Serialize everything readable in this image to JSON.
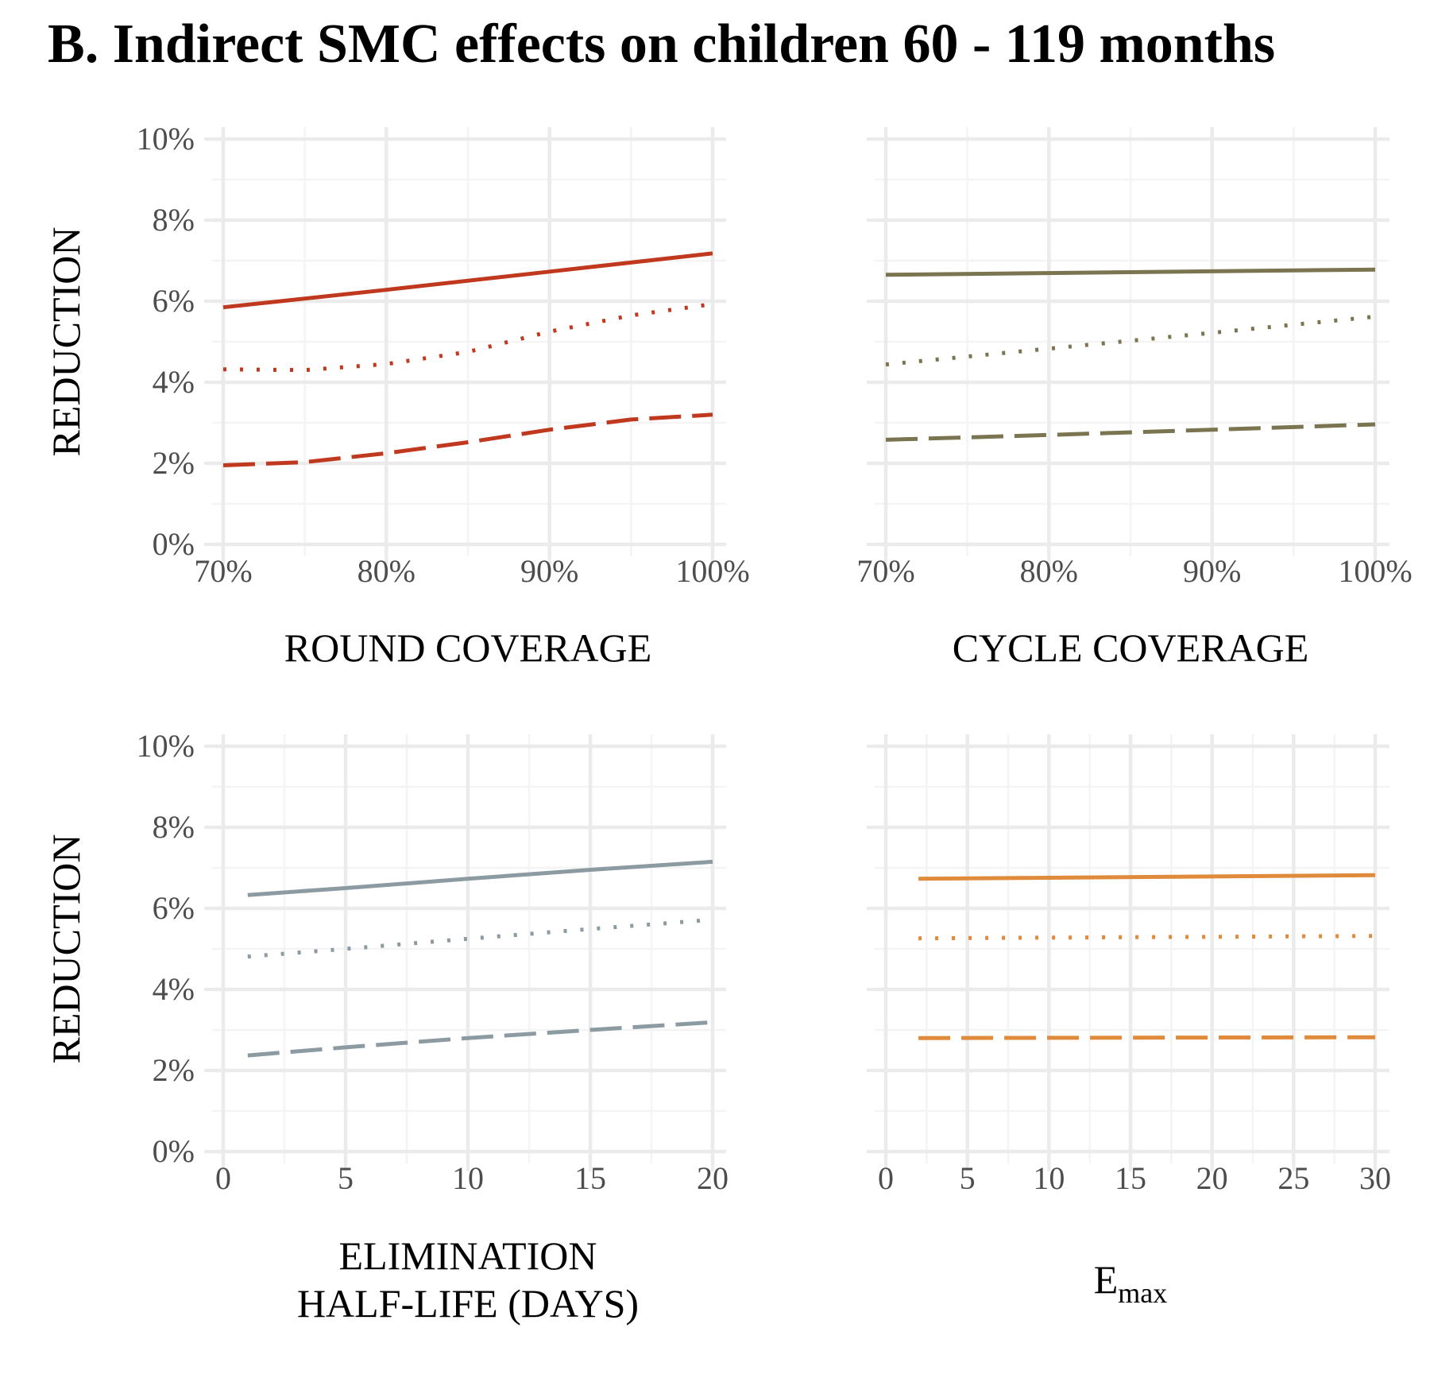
{
  "title": "B. Indirect SMC effects on children 60 - 119 months",
  "colors": {
    "round": "#c0391f",
    "cycle": "#7a7450",
    "half_life": "#8c9ba2",
    "emax": "#e08a3c"
  },
  "chart_data": [
    {
      "type": "line",
      "ylabel": "REDUCTION",
      "xlabel": "ROUND  COVERAGE",
      "xlim": [
        0.7,
        1.0
      ],
      "ylim": [
        0,
        0.1
      ],
      "x_ticks": [
        0.7,
        0.8,
        0.9,
        1.0
      ],
      "x_tick_labels": [
        "70%",
        "80%",
        "90%",
        "100%"
      ],
      "y_ticks": [
        0,
        0.02,
        0.04,
        0.06,
        0.08,
        0.1
      ],
      "y_tick_labels": [
        "0%",
        "2%",
        "4%",
        "6%",
        "8%",
        "10%"
      ],
      "grid": true,
      "color": "round",
      "series": [
        {
          "linestyle": "solid",
          "x": [
            0.7,
            0.8,
            0.9,
            1.0
          ],
          "y": [
            0.0585,
            0.0628,
            0.0673,
            0.0718
          ]
        },
        {
          "linestyle": "dotted",
          "x": [
            0.7,
            0.75,
            0.8,
            0.85,
            0.9,
            0.95,
            1.0
          ],
          "y": [
            0.0432,
            0.043,
            0.0445,
            0.0475,
            0.0525,
            0.0565,
            0.0593
          ]
        },
        {
          "linestyle": "dashed",
          "x": [
            0.7,
            0.75,
            0.8,
            0.85,
            0.9,
            0.95,
            1.0
          ],
          "y": [
            0.0195,
            0.0203,
            0.0225,
            0.0252,
            0.0283,
            0.0308,
            0.032
          ]
        }
      ]
    },
    {
      "type": "line",
      "ylabel": "",
      "xlabel": "CYCLE  COVERAGE",
      "xlim": [
        0.7,
        1.0
      ],
      "ylim": [
        0,
        0.1
      ],
      "x_ticks": [
        0.7,
        0.8,
        0.9,
        1.0
      ],
      "x_tick_labels": [
        "70%",
        "80%",
        "90%",
        "100%"
      ],
      "y_ticks": [
        0,
        0.02,
        0.04,
        0.06,
        0.08,
        0.1
      ],
      "y_tick_labels": [],
      "grid": true,
      "color": "cycle",
      "series": [
        {
          "linestyle": "solid",
          "x": [
            0.7,
            1.0
          ],
          "y": [
            0.0665,
            0.0678
          ]
        },
        {
          "linestyle": "dotted",
          "x": [
            0.7,
            0.8,
            0.9,
            1.0
          ],
          "y": [
            0.0444,
            0.0483,
            0.0522,
            0.0562
          ]
        },
        {
          "linestyle": "dashed",
          "x": [
            0.7,
            0.8,
            0.9,
            1.0
          ],
          "y": [
            0.0258,
            0.027,
            0.0283,
            0.0296
          ]
        }
      ]
    },
    {
      "type": "line",
      "ylabel": "REDUCTION",
      "xlabel_lines": [
        "ELIMINATION",
        "HALF-LIFE  (DAYS)"
      ],
      "xlim": [
        0,
        20
      ],
      "ylim": [
        0,
        0.1
      ],
      "x_ticks": [
        0,
        5,
        10,
        15,
        20
      ],
      "x_tick_labels": [
        "0",
        "5",
        "10",
        "15",
        "20"
      ],
      "y_ticks": [
        0,
        0.02,
        0.04,
        0.06,
        0.08,
        0.1
      ],
      "y_tick_labels": [
        "0%",
        "2%",
        "4%",
        "6%",
        "8%",
        "10%"
      ],
      "grid": true,
      "color": "half_life",
      "series": [
        {
          "linestyle": "solid",
          "x": [
            1,
            5,
            10,
            15,
            20
          ],
          "y": [
            0.0633,
            0.065,
            0.0673,
            0.0695,
            0.0715
          ]
        },
        {
          "linestyle": "dotted",
          "x": [
            1,
            5,
            10,
            15,
            20
          ],
          "y": [
            0.0481,
            0.05,
            0.0525,
            0.0549,
            0.0572
          ]
        },
        {
          "linestyle": "dashed",
          "x": [
            1,
            5,
            10,
            15,
            20
          ],
          "y": [
            0.0237,
            0.0257,
            0.028,
            0.03,
            0.0319
          ]
        }
      ]
    },
    {
      "type": "line",
      "ylabel": "",
      "xlabel": "E",
      "xlabel_sub": "max",
      "xlim": [
        0,
        30
      ],
      "ylim": [
        0,
        0.1
      ],
      "x_ticks": [
        0,
        5,
        10,
        15,
        20,
        25,
        30
      ],
      "x_tick_labels": [
        "0",
        "5",
        "10",
        "15",
        "20",
        "25",
        "30"
      ],
      "y_ticks": [
        0,
        0.02,
        0.04,
        0.06,
        0.08,
        0.1
      ],
      "y_tick_labels": [],
      "grid": true,
      "color": "emax",
      "series": [
        {
          "linestyle": "solid",
          "x": [
            2,
            30
          ],
          "y": [
            0.0673,
            0.0682
          ]
        },
        {
          "linestyle": "dotted",
          "x": [
            2,
            30
          ],
          "y": [
            0.0526,
            0.0532
          ]
        },
        {
          "linestyle": "dashed",
          "x": [
            2,
            30
          ],
          "y": [
            0.028,
            0.0282
          ]
        }
      ]
    }
  ]
}
